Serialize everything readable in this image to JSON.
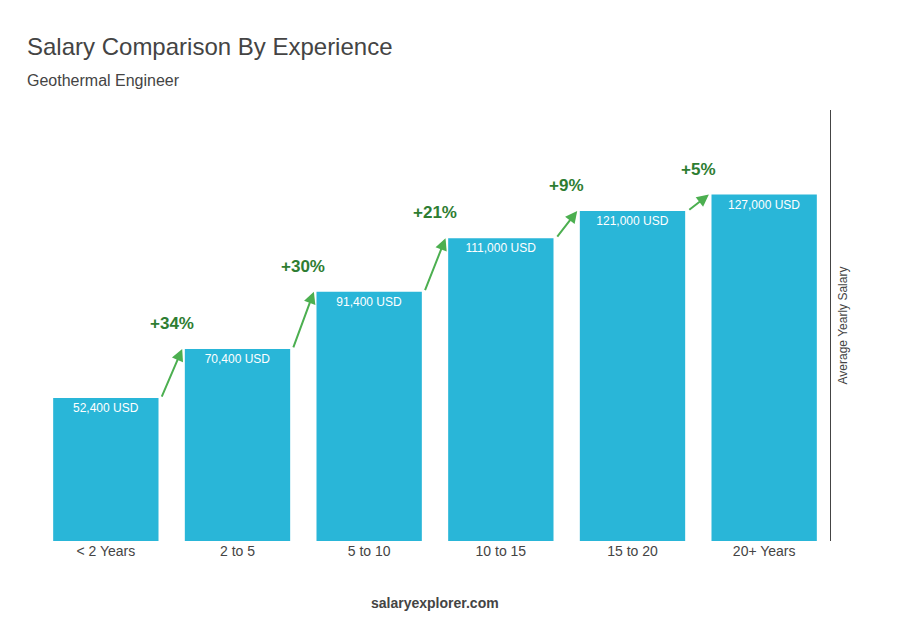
{
  "chart_data": {
    "type": "bar",
    "title": "Salary Comparison By Experience",
    "subtitle": "Geothermal Engineer",
    "ylabel": "Average Yearly Salary",
    "categories": [
      "< 2 Years",
      "2 to 5",
      "5 to 10",
      "10 to 15",
      "15 to 20",
      "20+ Years"
    ],
    "values": [
      52400,
      70400,
      91400,
      111000,
      121000,
      127000
    ],
    "value_labels": [
      "52,400 USD",
      "70,400 USD",
      "91,400 USD",
      "111,000 USD",
      "121,000 USD",
      "127,000 USD"
    ],
    "data_labels": true,
    "color": "#29B6D8",
    "ylim": [
      0,
      158000
    ],
    "grid": false,
    "tick_labels": "x",
    "annotations": [
      {
        "text": "+34%",
        "from": 0,
        "to": 1
      },
      {
        "text": "+30%",
        "from": 1,
        "to": 2
      },
      {
        "text": "+21%",
        "from": 2,
        "to": 3
      },
      {
        "text": "+9%",
        "from": 3,
        "to": 4
      },
      {
        "text": "+5%",
        "from": 4,
        "to": 5
      },
      {
        "text": "salaryexplorer.com"
      }
    ]
  }
}
